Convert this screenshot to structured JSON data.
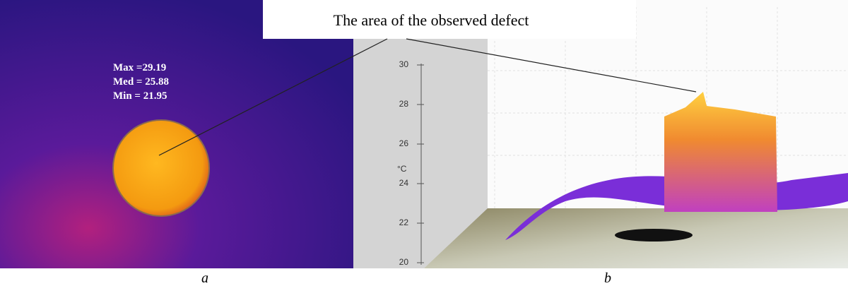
{
  "callout": "The area of the observed defect",
  "panel_a": {
    "stats": [
      "Max =29.19",
      "Med = 25.88",
      "Min = 21.95"
    ],
    "caption": "a"
  },
  "panel_b": {
    "axis_unit": "°C",
    "ticks": [
      30,
      28,
      26,
      24,
      22,
      20
    ],
    "caption": "b"
  }
}
